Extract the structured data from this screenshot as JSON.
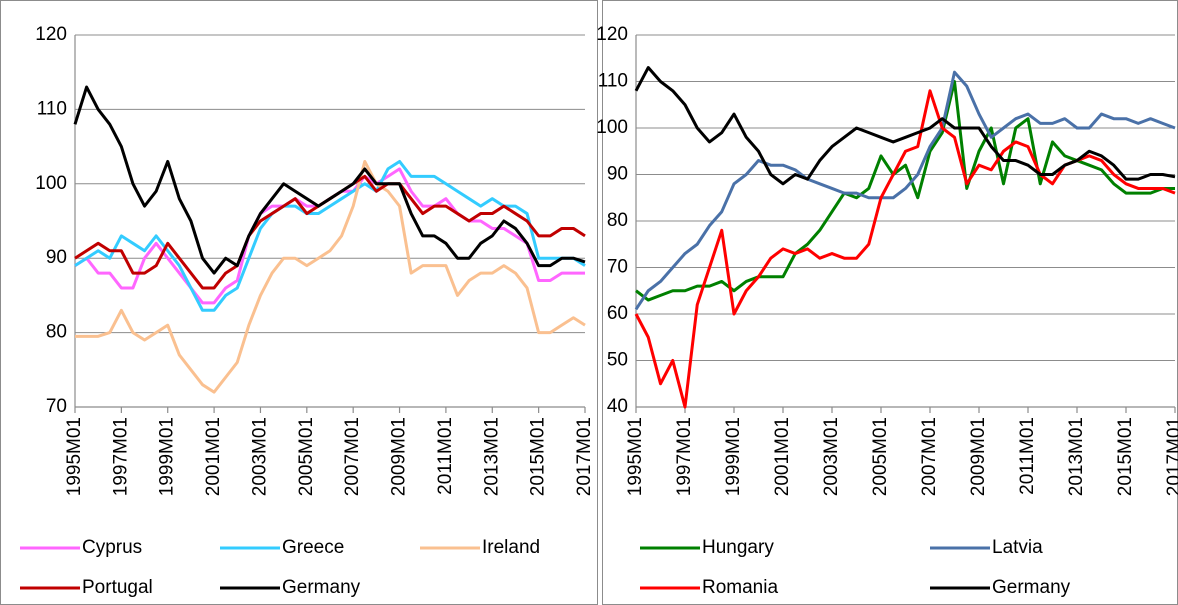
{
  "chart_data": [
    {
      "type": "line",
      "categories": [
        "1995M01",
        null,
        null,
        null,
        "1997M01",
        null,
        null,
        null,
        "1999M01",
        null,
        null,
        null,
        "2001M01",
        null,
        null,
        null,
        "2003M01",
        null,
        null,
        null,
        "2005M01",
        null,
        null,
        null,
        "2007M01",
        null,
        null,
        null,
        "2009M01",
        null,
        null,
        null,
        "2011M01",
        null,
        null,
        null,
        "2013M01",
        null,
        null,
        null,
        "2015M01",
        null,
        null,
        null,
        "2017M01"
      ],
      "ylim": [
        70,
        120
      ],
      "yticks": [
        70,
        80,
        90,
        100,
        110,
        120
      ],
      "grid": true,
      "series": [
        {
          "name": "Cyprus",
          "color": "#ff66ff",
          "values": [
            89,
            90,
            88,
            88,
            86,
            86,
            90,
            92,
            90,
            88,
            86,
            84,
            84,
            86,
            87,
            93,
            96,
            97,
            97,
            98,
            97,
            97,
            98,
            99,
            99,
            101,
            100,
            101,
            102,
            99,
            97,
            97,
            98,
            96,
            95,
            95,
            94,
            94,
            93,
            92,
            87,
            87,
            88,
            88,
            88
          ]
        },
        {
          "name": "Greece",
          "color": "#33ccff",
          "values": [
            89,
            90,
            91,
            90,
            93,
            92,
            91,
            93,
            91,
            89,
            86,
            83,
            83,
            85,
            86,
            90,
            94,
            96,
            97,
            97,
            96,
            96,
            97,
            98,
            99,
            100,
            99,
            102,
            103,
            101,
            101,
            101,
            100,
            99,
            98,
            97,
            98,
            97,
            97,
            96,
            90,
            90,
            90,
            90,
            89
          ]
        },
        {
          "name": "Ireland",
          "color": "#fac090",
          "values": [
            79.5,
            79.5,
            79.5,
            80,
            83,
            80,
            79,
            80,
            81,
            77,
            75,
            73,
            72,
            74,
            76,
            81,
            85,
            88,
            90,
            90,
            89,
            90,
            91,
            93,
            97,
            103,
            100,
            99,
            97,
            88,
            89,
            89,
            89,
            85,
            87,
            88,
            88,
            89,
            88,
            86,
            80,
            80,
            81,
            82,
            81
          ]
        },
        {
          "name": "Portugal",
          "color": "#c00000",
          "values": [
            90,
            91,
            92,
            91,
            91,
            88,
            88,
            89,
            92,
            90,
            88,
            86,
            86,
            88,
            89,
            93,
            95,
            96,
            97,
            98,
            96,
            97,
            98,
            99,
            100,
            101,
            99,
            100,
            100,
            98,
            96,
            97,
            97,
            96,
            95,
            96,
            96,
            97,
            96,
            95,
            93,
            93,
            94,
            94,
            93
          ]
        },
        {
          "name": "Germany",
          "color": "#000000",
          "values": [
            108,
            113,
            110,
            108,
            105,
            100,
            97,
            99,
            103,
            98,
            95,
            90,
            88,
            90,
            89,
            93,
            96,
            98,
            100,
            99,
            98,
            97,
            98,
            99,
            100,
            102,
            100,
            100,
            100,
            96,
            93,
            93,
            92,
            90,
            90,
            92,
            93,
            95,
            94,
            92,
            89,
            89,
            90,
            90,
            89.5
          ]
        }
      ]
    },
    {
      "type": "line",
      "categories": [
        "1995M01",
        null,
        null,
        null,
        "1997M01",
        null,
        null,
        null,
        "1999M01",
        null,
        null,
        null,
        "2001M01",
        null,
        null,
        null,
        "2003M01",
        null,
        null,
        null,
        "2005M01",
        null,
        null,
        null,
        "2007M01",
        null,
        null,
        null,
        "2009M01",
        null,
        null,
        null,
        "2011M01",
        null,
        null,
        null,
        "2013M01",
        null,
        null,
        null,
        "2015M01",
        null,
        null,
        null,
        "2017M01"
      ],
      "ylim": [
        40,
        120
      ],
      "yticks": [
        40,
        50,
        60,
        70,
        80,
        90,
        100,
        110,
        120
      ],
      "grid": true,
      "series": [
        {
          "name": "Hungary",
          "color": "#008000",
          "values": [
            65,
            63,
            64,
            65,
            65,
            66,
            66,
            67,
            65,
            67,
            68,
            68,
            68,
            73,
            75,
            78,
            82,
            86,
            85,
            87,
            94,
            90,
            92,
            85,
            95,
            99,
            110,
            87,
            95,
            100,
            88,
            100,
            102,
            88,
            97,
            94,
            93,
            92,
            91,
            88,
            86,
            86,
            86,
            87,
            87
          ]
        },
        {
          "name": "Latvia",
          "color": "#4a71a8",
          "values": [
            61,
            65,
            67,
            70,
            73,
            75,
            79,
            82,
            88,
            90,
            93,
            92,
            92,
            91,
            89,
            88,
            87,
            86,
            86,
            85,
            85,
            85,
            87,
            90,
            96,
            100,
            112,
            109,
            103,
            98,
            100,
            102,
            103,
            101,
            101,
            102,
            100,
            100,
            103,
            102,
            102,
            101,
            102,
            101,
            100
          ]
        },
        {
          "name": "Romania",
          "color": "#ff0000",
          "values": [
            60,
            55,
            45,
            50,
            40,
            62,
            70,
            78,
            60,
            65,
            68,
            72,
            74,
            73,
            74,
            72,
            73,
            72,
            72,
            75,
            85,
            90,
            95,
            96,
            108,
            100,
            98,
            88,
            92,
            91,
            95,
            97,
            96,
            90,
            88,
            92,
            93,
            94,
            93,
            90,
            88,
            87,
            87,
            87,
            86
          ]
        },
        {
          "name": "Germany",
          "color": "#000000",
          "values": [
            108,
            113,
            110,
            108,
            105,
            100,
            97,
            99,
            103,
            98,
            95,
            90,
            88,
            90,
            89,
            93,
            96,
            98,
            100,
            99,
            98,
            97,
            98,
            99,
            100,
            102,
            100,
            100,
            100,
            96,
            93,
            93,
            92,
            90,
            90,
            92,
            93,
            95,
            94,
            92,
            89,
            89,
            90,
            90,
            89.5
          ]
        }
      ]
    }
  ]
}
